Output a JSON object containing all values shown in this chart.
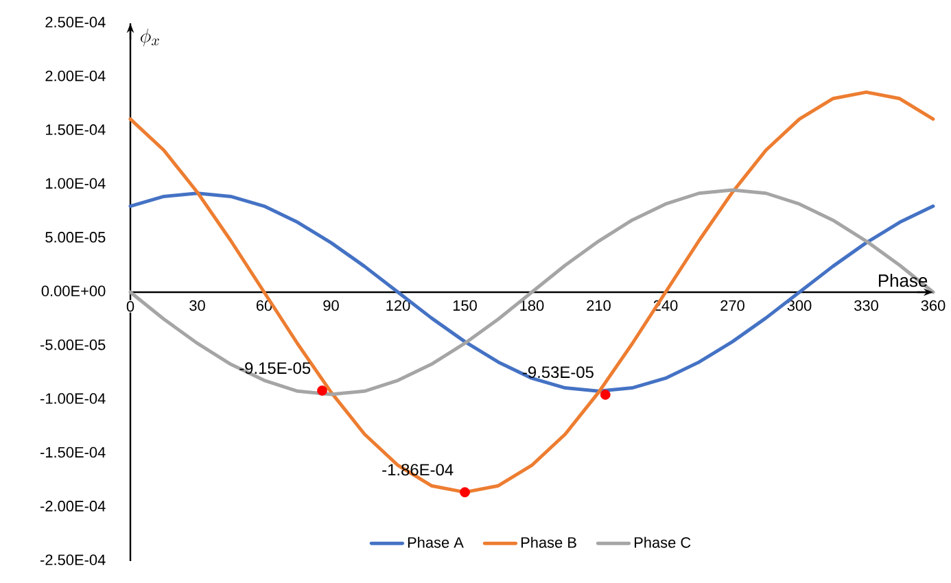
{
  "chart_data": {
    "type": "line",
    "xlabel": "Phase",
    "ylabel": "\\phi_x",
    "x": [
      0,
      15,
      30,
      45,
      60,
      75,
      90,
      105,
      120,
      135,
      150,
      165,
      180,
      195,
      210,
      225,
      240,
      255,
      270,
      285,
      300,
      315,
      330,
      345,
      360
    ],
    "series": [
      {
        "name": "Phase A",
        "color": "#4472c4",
        "values": [
          8e-05,
          8.9e-05,
          9.2e-05,
          8.9e-05,
          8e-05,
          6.5e-05,
          4.6e-05,
          2.4e-05,
          0,
          -2.4e-05,
          -4.6e-05,
          -6.5e-05,
          -8e-05,
          -8.9e-05,
          -9.2e-05,
          -8.9e-05,
          -8e-05,
          -6.5e-05,
          -4.6e-05,
          -2.4e-05,
          0,
          2.4e-05,
          4.6e-05,
          6.5e-05,
          8e-05
        ]
      },
      {
        "name": "Phase B",
        "color": "#ed7d31",
        "values": [
          0.000161,
          0.000132,
          9.3e-05,
          4.8e-05,
          0,
          -4.8e-05,
          -9.3e-05,
          -0.000132,
          -0.000161,
          -0.00018,
          -0.000186,
          -0.00018,
          -0.000161,
          -0.000132,
          -9.3e-05,
          -4.8e-05,
          0,
          4.8e-05,
          9.3e-05,
          0.000132,
          0.000161,
          0.00018,
          0.000186,
          0.00018,
          0.000161
        ]
      },
      {
        "name": "Phase C",
        "color": "#a5a5a5",
        "values": [
          0,
          -2.5e-05,
          -4.75e-05,
          -6.7e-05,
          -8.2e-05,
          -9.2e-05,
          -9.5e-05,
          -9.2e-05,
          -8.2e-05,
          -6.7e-05,
          -4.75e-05,
          -2.5e-05,
          0,
          2.5e-05,
          4.75e-05,
          6.7e-05,
          8.2e-05,
          9.2e-05,
          9.5e-05,
          9.2e-05,
          8.2e-05,
          6.7e-05,
          4.75e-05,
          2.5e-05,
          0
        ]
      },
      {
        "type": "scatter",
        "marker": "circle",
        "color": "#ff0000",
        "x": [
          86,
          150,
          213
        ],
        "values": [
          -9.15e-05,
          -0.000186,
          -9.53e-05
        ],
        "value_labels": [
          "-9.15E-05",
          "-1.86E-04",
          "-9.53E-05"
        ]
      }
    ],
    "xlim": [
      0,
      360
    ],
    "xticks": [
      0,
      30,
      60,
      90,
      120,
      150,
      180,
      210,
      240,
      270,
      300,
      330,
      360
    ],
    "ylim": [
      -0.00025,
      0.00025
    ],
    "yticks": [
      {
        "value": -0.00025,
        "label": "-2.50E-04"
      },
      {
        "value": -0.0002,
        "label": "-2.00E-04"
      },
      {
        "value": -0.00015,
        "label": "-1.50E-04"
      },
      {
        "value": -0.0001,
        "label": "-1.00E-04"
      },
      {
        "value": -5e-05,
        "label": "-5.00E-05"
      },
      {
        "value": 0,
        "label": "0.00E+00"
      },
      {
        "value": 5e-05,
        "label": "5.00E-05"
      },
      {
        "value": 0.0001,
        "label": "1.00E-04"
      },
      {
        "value": 0.00015,
        "label": "1.50E-04"
      },
      {
        "value": 0.0002,
        "label": "2.00E-04"
      },
      {
        "value": 0.00025,
        "label": "2.50E-04"
      }
    ],
    "grid": false,
    "legend": "bottom"
  }
}
